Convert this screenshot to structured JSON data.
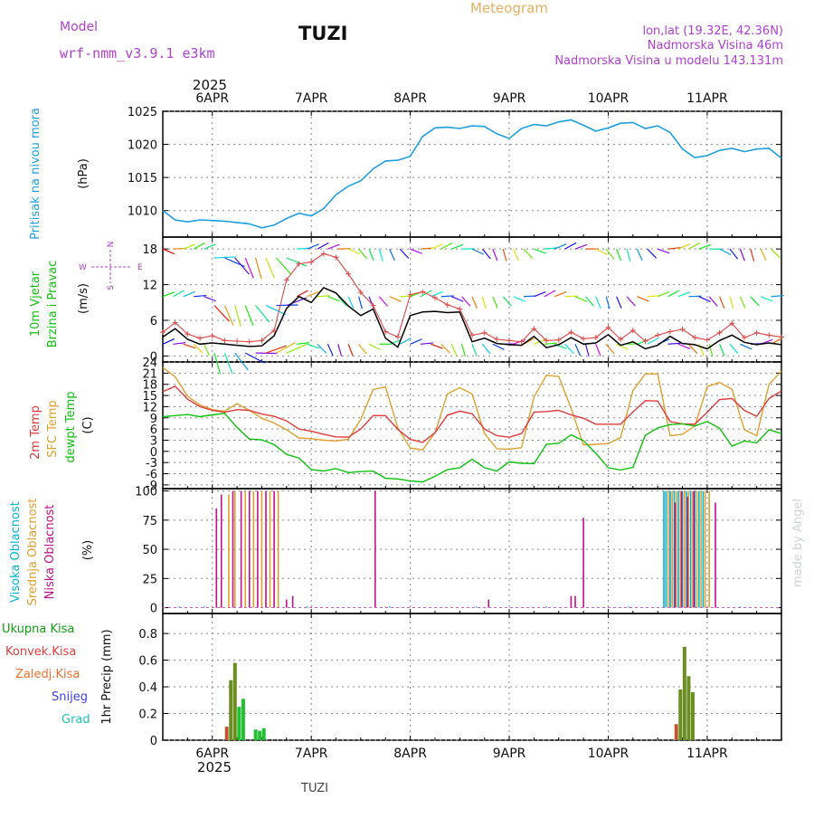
{
  "header": {
    "model_label": "Model",
    "model_name": "wrf-nmm_v3.9.1 e3km",
    "location_title": "TUZI",
    "meteogram_label": "Meteogram",
    "coords": "lon,lat (19.32E, 42.36N)",
    "altitude": "Nadmorska Visina 46m",
    "model_altitude": "Nadmorska Visina u modelu 143.131m"
  },
  "footer": {
    "station": "TUZI",
    "watermark": "made by Angel"
  },
  "colors": {
    "pressure": "#1f9fe0",
    "temp2m": "#e03b3b",
    "sfc": "#e0a030",
    "dewpt": "#10c010",
    "high": "#00b4d8",
    "mid": "#e0a030",
    "low": "#c0108a",
    "total_precip": "#6b8e23",
    "conv_precip": "#e83c3c",
    "frozen": "#f07030",
    "snow": "#4040e0",
    "hail": "#20c0c0"
  },
  "chart_data": [
    {
      "id": "pressure",
      "type": "line",
      "title": "Pritisak na nivou mora",
      "ylabel": "(hPa)",
      "ylim": [
        1006,
        1025
      ],
      "yticks": [
        1010,
        1015,
        1020,
        1025
      ],
      "year_label": "2025",
      "x_ticks": [
        "6APR",
        "7APR",
        "8APR",
        "9APR",
        "10APR",
        "11APR"
      ],
      "x_tick_hours": [
        12,
        36,
        60,
        84,
        108,
        132
      ],
      "xlim": [
        0,
        150
      ],
      "x": [
        0,
        3,
        6,
        9,
        12,
        15,
        18,
        21,
        24,
        27,
        30,
        33,
        36,
        39,
        42,
        45,
        48,
        51,
        54,
        57,
        60,
        63,
        66,
        69,
        72,
        75,
        78,
        81,
        84,
        87,
        90,
        93,
        96,
        99,
        102,
        105,
        108,
        111,
        114,
        117,
        120,
        123,
        126,
        129,
        132,
        135,
        138,
        141,
        144,
        147,
        150
      ],
      "values": [
        1010,
        1008.6,
        1008.3,
        1008.6,
        1008.5,
        1008.4,
        1008.2,
        1008,
        1007.4,
        1007.8,
        1008.8,
        1009.6,
        1009.2,
        1010.3,
        1012.4,
        1013.7,
        1014.5,
        1016.3,
        1017.5,
        1017.6,
        1018.2,
        1021.2,
        1022.5,
        1022.6,
        1022.4,
        1022.8,
        1022.7,
        1021.6,
        1020.9,
        1022.4,
        1023,
        1022.8,
        1023.4,
        1023.7,
        1022.9,
        1022,
        1022.5,
        1023.2,
        1023.3,
        1022.4,
        1022.8,
        1021.8,
        1019.3,
        1018,
        1018.3,
        1019.1,
        1019.4,
        1018.9,
        1019.3,
        1019.4,
        1017.9
      ]
    },
    {
      "id": "wind",
      "type": "line",
      "title_line1": "10m Vjetar",
      "title_line2": "Brzina i Pravac",
      "ylabel": "(m/s)",
      "ylim": [
        -1,
        20
      ],
      "yticks": [
        0,
        6,
        12,
        18
      ],
      "compass": {
        "n": "N",
        "s": "S",
        "w": "W",
        "e": "E"
      },
      "x": [
        0,
        3,
        6,
        9,
        12,
        15,
        18,
        21,
        24,
        27,
        30,
        33,
        36,
        39,
        42,
        45,
        48,
        51,
        54,
        57,
        60,
        63,
        66,
        69,
        72,
        75,
        78,
        81,
        84,
        87,
        90,
        93,
        96,
        99,
        102,
        105,
        108,
        111,
        114,
        117,
        120,
        123,
        126,
        129,
        132,
        135,
        138,
        141,
        144,
        147,
        150
      ],
      "series": [
        {
          "name": "speed",
          "values": [
            3.2,
            4.6,
            2.8,
            2,
            2.2,
            2,
            1.8,
            1.6,
            1.7,
            3.4,
            8,
            10,
            9,
            11.5,
            10.6,
            8.4,
            6.8,
            7.9,
            3,
            1.5,
            6.8,
            7.4,
            7.5,
            7.3,
            7.4,
            2.4,
            3,
            2.1,
            1.9,
            1.8,
            3.3,
            1.4,
            1.9,
            3.1,
            2,
            2.2,
            3.6,
            1.8,
            2.4,
            1.2,
            1.8,
            3.3,
            2.1,
            1.9,
            1.2,
            2.6,
            3.5,
            2.3,
            1.9,
            2.2,
            1.9
          ]
        },
        {
          "name": "gust",
          "values": [
            4,
            5.6,
            3.7,
            3,
            3.4,
            2.6,
            2.5,
            2.4,
            2.6,
            4.3,
            12.8,
            15.5,
            15.8,
            17.2,
            16.6,
            13.8,
            10.7,
            8.5,
            4.1,
            3.2,
            10.3,
            10.8,
            9.8,
            8.6,
            7.9,
            3.5,
            3.9,
            2.8,
            2.6,
            2.4,
            4.6,
            2.6,
            2.7,
            4,
            2.9,
            3.1,
            4.8,
            2.8,
            4.3,
            2.5,
            3.5,
            4.1,
            4.5,
            3.1,
            2.7,
            3.9,
            5.5,
            3.1,
            3.9,
            3.5,
            3.2
          ]
        }
      ]
    },
    {
      "id": "temperature",
      "type": "line",
      "title_a": "2m Temp",
      "title_b": "SFC Temp",
      "title_c": "dewpt Temp",
      "ylabel": "(C)",
      "ylim": [
        -10,
        24
      ],
      "yticks": [
        -9,
        -6,
        -3,
        0,
        3,
        6,
        9,
        12,
        15,
        18,
        21,
        24
      ],
      "x": [
        0,
        3,
        6,
        9,
        12,
        15,
        18,
        21,
        24,
        27,
        30,
        33,
        36,
        39,
        42,
        45,
        48,
        51,
        54,
        57,
        60,
        63,
        66,
        69,
        72,
        75,
        78,
        81,
        84,
        87,
        90,
        93,
        96,
        99,
        102,
        105,
        108,
        111,
        114,
        117,
        120,
        123,
        126,
        129,
        132,
        135,
        138,
        141,
        144,
        147,
        150
      ],
      "series": [
        {
          "name": "2m",
          "values": [
            16,
            17.5,
            14,
            12,
            11,
            10.5,
            11.2,
            11,
            10,
            9.4,
            8.2,
            6,
            5.4,
            4.6,
            3.9,
            3.8,
            6,
            9.6,
            9.6,
            5.9,
            3.2,
            2.4,
            5,
            9.7,
            10.8,
            10.1,
            6,
            4.2,
            3.8,
            4.8,
            10.5,
            10.7,
            11,
            9.8,
            8.9,
            7.3,
            7.3,
            7.3,
            10.6,
            13.6,
            13.5,
            8,
            7.4,
            7.3,
            10.5,
            13.9,
            14.2,
            11,
            9.4,
            14.2,
            16.2
          ]
        },
        {
          "name": "sfc",
          "values": [
            22.5,
            20,
            14.8,
            12.5,
            11.2,
            10.8,
            12.8,
            11,
            8.9,
            7.6,
            5.8,
            3.6,
            3.4,
            3,
            2.8,
            3.2,
            8.6,
            16.6,
            17.3,
            6.3,
            0.9,
            0.4,
            5,
            15.4,
            17.1,
            15.4,
            4.8,
            0.7,
            0.6,
            1,
            14.6,
            20.4,
            20.1,
            11.6,
            1.7,
            1.9,
            2.1,
            3.7,
            16.3,
            20.8,
            20.8,
            4.2,
            4.6,
            6.8,
            17.4,
            18.5,
            16.7,
            5.8,
            4.2,
            18,
            21.5
          ]
        },
        {
          "name": "dewpt",
          "values": [
            9.3,
            9.6,
            9.9,
            9.3,
            9.8,
            10.2,
            6.4,
            3.3,
            3.1,
            1.8,
            -0.8,
            -1.8,
            -4.9,
            -5.3,
            -4.6,
            -5.7,
            -5.4,
            -5.3,
            -7.2,
            -7.4,
            -7.9,
            -8.2,
            -6.7,
            -4.9,
            -4.4,
            -2.1,
            -4.4,
            -5.3,
            -2.8,
            -3.2,
            -3.3,
            1.9,
            2.2,
            4.4,
            2.9,
            -0.5,
            -4.4,
            -5,
            -4.3,
            4.3,
            6.3,
            7.2,
            7.4,
            6.8,
            8,
            6.2,
            1.4,
            2.8,
            2.3,
            5.8,
            4.8
          ]
        }
      ]
    },
    {
      "id": "clouds",
      "type": "bar",
      "title_a": "Visoka Oblacnost",
      "title_b": "Srednja Oblacnost",
      "title_c": "Niska Oblacnost",
      "ylabel": "(%)",
      "ylim": [
        -5,
        102
      ],
      "yticks": [
        0,
        25,
        50,
        75,
        100
      ],
      "series": [
        {
          "name": "high",
          "bars": [
            [
              4,
              1
            ],
            [
              10,
              1
            ],
            [
              20,
              1
            ],
            [
              25,
              1
            ],
            [
              35,
              1
            ],
            [
              55,
              1
            ],
            [
              76,
              1
            ],
            [
              93,
              1
            ],
            [
              113,
              1
            ],
            [
              128,
              1
            ],
            [
              140,
              1
            ]
          ]
        },
        {
          "name": "mid",
          "bars": [
            [
              14,
              1
            ],
            [
              16,
              97
            ],
            [
              17.5,
              100
            ],
            [
              20,
              100
            ],
            [
              22,
              100
            ],
            [
              24,
              100
            ],
            [
              26,
              100
            ],
            [
              28,
              100
            ],
            [
              54,
              1
            ],
            [
              125,
              1
            ]
          ]
        },
        {
          "name": "low",
          "bars": [
            [
              13,
              85
            ],
            [
              14.2,
              97
            ],
            [
              17,
              100
            ],
            [
              19,
              100
            ],
            [
              21,
              100
            ],
            [
              23,
              100
            ],
            [
              25,
              100
            ],
            [
              27,
              100
            ],
            [
              30,
              7
            ],
            [
              31.5,
              10
            ],
            [
              51.5,
              100
            ],
            [
              79,
              7
            ],
            [
              99,
              10
            ],
            [
              100,
              10
            ],
            [
              102,
              77
            ],
            [
              123,
              100
            ],
            [
              134,
              90
            ]
          ]
        },
        {
          "name": "high_late",
          "bars": [
            [
              121.5,
              100
            ],
            [
              122,
              100
            ],
            [
              123,
              100
            ],
            [
              124,
              100
            ],
            [
              125,
              100
            ],
            [
              126,
              100
            ],
            [
              127,
              100
            ],
            [
              128,
              100
            ],
            [
              129,
              100
            ],
            [
              130,
              100
            ],
            [
              131,
              100
            ]
          ]
        },
        {
          "name": "mid_late",
          "bars": [
            [
              122.5,
              100
            ],
            [
              123.5,
              100
            ],
            [
              124.5,
              100
            ],
            [
              125.5,
              100
            ],
            [
              126.5,
              100
            ],
            [
              127.5,
              100
            ],
            [
              128.5,
              100
            ],
            [
              129.5,
              100
            ],
            [
              130.5,
              100
            ],
            [
              131.5,
              100
            ],
            [
              132.5,
              100
            ]
          ]
        },
        {
          "name": "low_late",
          "bars": [
            [
              124.2,
              90
            ],
            [
              125.8,
              100
            ],
            [
              127.2,
              95
            ],
            [
              128.8,
              100
            ]
          ]
        }
      ]
    },
    {
      "id": "precip",
      "type": "bar",
      "ylabel": "1hr Precip (mm)",
      "ylim": [
        0,
        0.95
      ],
      "yticks": [
        0,
        0.2,
        0.4,
        0.6,
        0.8
      ],
      "legend": [
        "Ukupna Kisa",
        "Konvek.Kisa",
        "Zaledj.Kisa",
        "Snijeg",
        "Grad"
      ],
      "series": [
        {
          "name": "total",
          "bars": [
            [
              15.5,
              0.1
            ],
            [
              16.5,
              0.45
            ],
            [
              17.5,
              0.58
            ],
            [
              18.5,
              0.25
            ],
            [
              19.5,
              0.31
            ],
            [
              22.5,
              0.08
            ],
            [
              23.5,
              0.07
            ],
            [
              24.5,
              0.09
            ],
            [
              124.5,
              0.12
            ],
            [
              125.5,
              0.38
            ],
            [
              126.5,
              0.7
            ],
            [
              127.5,
              0.48
            ],
            [
              128.5,
              0.36
            ]
          ]
        },
        {
          "name": "conv",
          "bars": [
            [
              15.5,
              0.1
            ],
            [
              124.5,
              0.12
            ]
          ]
        }
      ]
    }
  ]
}
